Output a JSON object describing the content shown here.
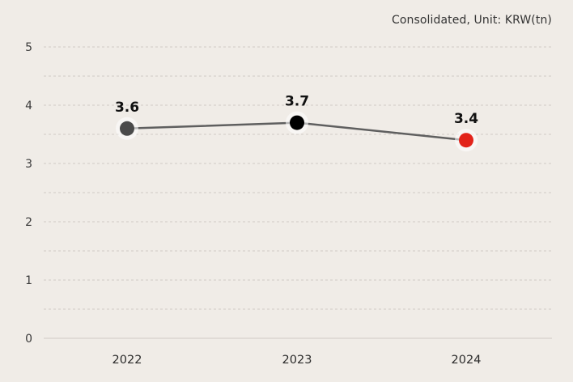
{
  "chart_data": {
    "type": "line",
    "title": "",
    "note": "Consolidated, Unit: KRW(tn)",
    "xlabel": "",
    "ylabel": "",
    "categories": [
      "2022",
      "2023",
      "2024"
    ],
    "values": [
      3.6,
      3.7,
      3.4
    ],
    "data_labels": [
      "3.6",
      "3.7",
      "3.4"
    ],
    "point_colors": [
      "#4a4a4a",
      "#000000",
      "#e2231a"
    ],
    "ylim": [
      0,
      5
    ],
    "yticks": [
      "0",
      "1",
      "2",
      "3",
      "4",
      "5"
    ],
    "grid": true,
    "line_color": "#5f5f5f",
    "axis_color": "#cfcac4",
    "grid_color": "#cfcac4",
    "background": "#f0ece7"
  }
}
